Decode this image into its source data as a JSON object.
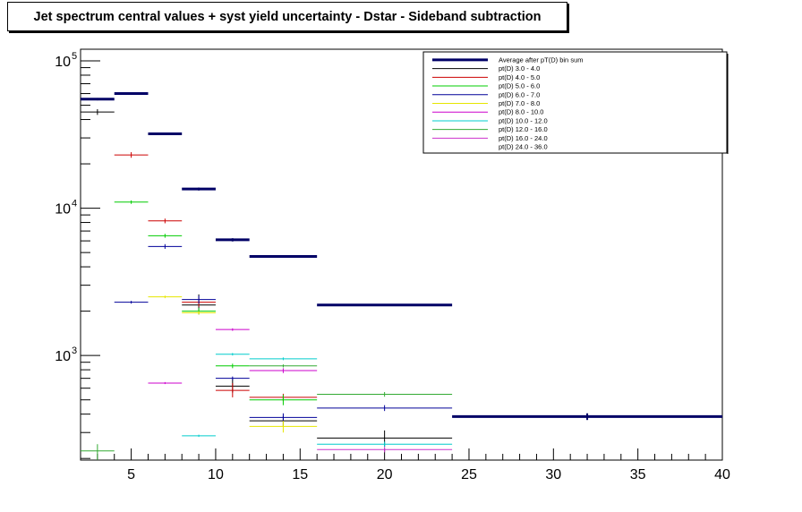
{
  "chart_data": {
    "type": "scatter",
    "title": "Jet spectrum central values + syst yield uncertainty - Dstar - Sideband subtraction",
    "xlabel": "",
    "ylabel": "",
    "xlim": [
      2,
      40
    ],
    "ylim": [
      195,
      120000
    ],
    "yscale": "log",
    "grid": false,
    "legend_position": "top-right",
    "x_ticks": [
      5,
      10,
      15,
      20,
      25,
      30,
      35,
      40
    ],
    "y_ticks": [
      {
        "mantissa": "10",
        "exponent": "3",
        "value": 1000
      },
      {
        "mantissa": "10",
        "exponent": "4",
        "value": 10000
      },
      {
        "mantissa": "10",
        "exponent": "5",
        "value": 100000
      }
    ],
    "series": [
      {
        "name": "Average after pT(D) bin sum",
        "color": "#000066",
        "thick": true,
        "points": [
          {
            "x": 3,
            "xerr": 1,
            "y": 55000,
            "ylo": 54000,
            "yhi": 56000
          },
          {
            "x": 5,
            "xerr": 1,
            "y": 60000,
            "ylo": 59000,
            "yhi": 61000
          },
          {
            "x": 7,
            "xerr": 1,
            "y": 32000,
            "ylo": 31500,
            "yhi": 32500
          },
          {
            "x": 9,
            "xerr": 1,
            "y": 13500,
            "ylo": 13200,
            "yhi": 13800
          },
          {
            "x": 11,
            "xerr": 1,
            "y": 6100,
            "ylo": 5950,
            "yhi": 6250
          },
          {
            "x": 14,
            "xerr": 2,
            "y": 4700,
            "ylo": 4650,
            "yhi": 4750
          },
          {
            "x": 20,
            "xerr": 4,
            "y": 2200,
            "ylo": 2170,
            "yhi": 2230
          },
          {
            "x": 32,
            "xerr": 8,
            "y": 385,
            "ylo": 365,
            "yhi": 405
          }
        ]
      },
      {
        "name": "pt(D) 3.0 - 4.0",
        "color": "#000000",
        "points": [
          {
            "x": 3,
            "xerr": 1,
            "y": 45000,
            "ylo": 43000,
            "yhi": 47000
          },
          {
            "x": 9,
            "xerr": 1,
            "y": 2200,
            "ylo": 1900,
            "yhi": 2600
          },
          {
            "x": 11,
            "xerr": 1,
            "y": 620,
            "ylo": 560,
            "yhi": 690
          },
          {
            "x": 14,
            "xerr": 2,
            "y": 360,
            "ylo": 330,
            "yhi": 390
          },
          {
            "x": 20,
            "xerr": 4,
            "y": 275,
            "ylo": 240,
            "yhi": 310
          }
        ]
      },
      {
        "name": "pt(D) 4.0 - 5.0",
        "color": "#cc0000",
        "points": [
          {
            "x": 5,
            "xerr": 1,
            "y": 23000,
            "ylo": 22000,
            "yhi": 24000
          },
          {
            "x": 7,
            "xerr": 1,
            "y": 8200,
            "ylo": 7900,
            "yhi": 8500
          },
          {
            "x": 9,
            "xerr": 1,
            "y": 2300,
            "ylo": 2150,
            "yhi": 2450
          },
          {
            "x": 11,
            "xerr": 1,
            "y": 580,
            "ylo": 520,
            "yhi": 650
          },
          {
            "x": 14,
            "xerr": 2,
            "y": 520,
            "ylo": 490,
            "yhi": 550
          }
        ]
      },
      {
        "name": "pt(D) 5.0 - 6.0",
        "color": "#00cc00",
        "points": [
          {
            "x": 5,
            "xerr": 1,
            "y": 11000,
            "ylo": 10700,
            "yhi": 11300
          },
          {
            "x": 7,
            "xerr": 1,
            "y": 6500,
            "ylo": 6300,
            "yhi": 6700
          },
          {
            "x": 9,
            "xerr": 1,
            "y": 2000,
            "ylo": 1900,
            "yhi": 2100
          },
          {
            "x": 11,
            "xerr": 1,
            "y": 850,
            "ylo": 820,
            "yhi": 880
          },
          {
            "x": 14,
            "xerr": 2,
            "y": 500,
            "ylo": 460,
            "yhi": 540
          }
        ]
      },
      {
        "name": "pt(D) 6.0 - 7.0",
        "color": "#000099",
        "points": [
          {
            "x": 5,
            "xerr": 1,
            "y": 2300,
            "ylo": 2250,
            "yhi": 2350
          },
          {
            "x": 7,
            "xerr": 1,
            "y": 5500,
            "ylo": 5300,
            "yhi": 5700
          },
          {
            "x": 9,
            "xerr": 1,
            "y": 2400,
            "ylo": 2250,
            "yhi": 2550
          },
          {
            "x": 11,
            "xerr": 1,
            "y": 700,
            "ylo": 680,
            "yhi": 720
          },
          {
            "x": 14,
            "xerr": 2,
            "y": 380,
            "ylo": 360,
            "yhi": 405
          },
          {
            "x": 20,
            "xerr": 4,
            "y": 440,
            "ylo": 420,
            "yhi": 460
          }
        ]
      },
      {
        "name": "pt(D) 7.0 - 8.0",
        "color": "#e6e600",
        "points": [
          {
            "x": 7,
            "xerr": 1,
            "y": 2500,
            "ylo": 2450,
            "yhi": 2550
          },
          {
            "x": 9,
            "xerr": 1,
            "y": 1950,
            "ylo": 1900,
            "yhi": 2000
          },
          {
            "x": 14,
            "xerr": 2,
            "y": 330,
            "ylo": 300,
            "yhi": 360
          }
        ]
      },
      {
        "name": "pt(D) 8.0 - 10.0",
        "color": "#cc00cc",
        "points": [
          {
            "x": 7,
            "xerr": 1,
            "y": 650,
            "ylo": 640,
            "yhi": 660
          },
          {
            "x": 11,
            "xerr": 1,
            "y": 1500,
            "ylo": 1470,
            "yhi": 1530
          },
          {
            "x": 14,
            "xerr": 2,
            "y": 790,
            "ylo": 760,
            "yhi": 820
          }
        ]
      },
      {
        "name": "pt(D) 10.0 - 12.0",
        "color": "#00cccc",
        "points": [
          {
            "x": 9,
            "xerr": 1,
            "y": 285,
            "ylo": 280,
            "yhi": 290
          },
          {
            "x": 11,
            "xerr": 1,
            "y": 1020,
            "ylo": 1000,
            "yhi": 1040
          },
          {
            "x": 14,
            "xerr": 2,
            "y": 950,
            "ylo": 930,
            "yhi": 970
          },
          {
            "x": 20,
            "xerr": 4,
            "y": 250,
            "ylo": 240,
            "yhi": 260
          }
        ]
      },
      {
        "name": "pt(D) 12.0 - 16.0",
        "color": "#33aa33",
        "points": [
          {
            "x": 3,
            "xerr": 1,
            "y": 225,
            "ylo": 195,
            "yhi": 250
          },
          {
            "x": 14,
            "xerr": 2,
            "y": 850,
            "ylo": 830,
            "yhi": 870
          },
          {
            "x": 20,
            "xerr": 4,
            "y": 545,
            "ylo": 525,
            "yhi": 565
          }
        ]
      },
      {
        "name": "pt(D) 16.0 - 24.0",
        "color": "#cc33cc",
        "points": [
          {
            "x": 20,
            "xerr": 4,
            "y": 230,
            "ylo": 220,
            "yhi": 240
          }
        ]
      },
      {
        "name": "pt(D) 24.0 - 36.0",
        "color": "#ffffff",
        "points": []
      }
    ]
  }
}
